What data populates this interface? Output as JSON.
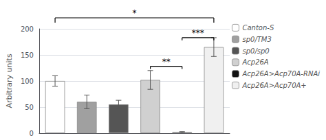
{
  "chart_data": {
    "type": "bar",
    "categories": [
      "Canton-S",
      "sp0/TM3",
      "sp0/sp0",
      "Acp26A",
      "Acp26A>Acp70A-RNAi",
      "Acp26A>Acp70A+"
    ],
    "values": [
      100,
      60,
      55,
      102,
      2,
      165
    ],
    "errors": [
      10,
      13,
      8,
      18,
      1,
      18
    ],
    "colors": [
      "#ffffff",
      "#a0a0a0",
      "#555555",
      "#d0d0d0",
      "#111111",
      "#f0f0f0"
    ],
    "ylabel": "Arbitrary units",
    "ylim": [
      0,
      200
    ],
    "yticks": [
      0,
      50,
      100,
      150,
      200
    ],
    "grid": true,
    "legend": "right",
    "tick_labels": "y",
    "annotations": [
      {
        "text": "**",
        "from": "Acp26A",
        "to": "Acp26A>Acp70A-RNAi",
        "y": 128
      },
      {
        "text": "***",
        "from": "Acp26A>Acp70A-RNAi",
        "to": "Acp26A>Acp70A+",
        "y": 183
      },
      {
        "text": "*",
        "from": "Canton-S",
        "to": "Acp26A>Acp70A+"
      }
    ]
  }
}
